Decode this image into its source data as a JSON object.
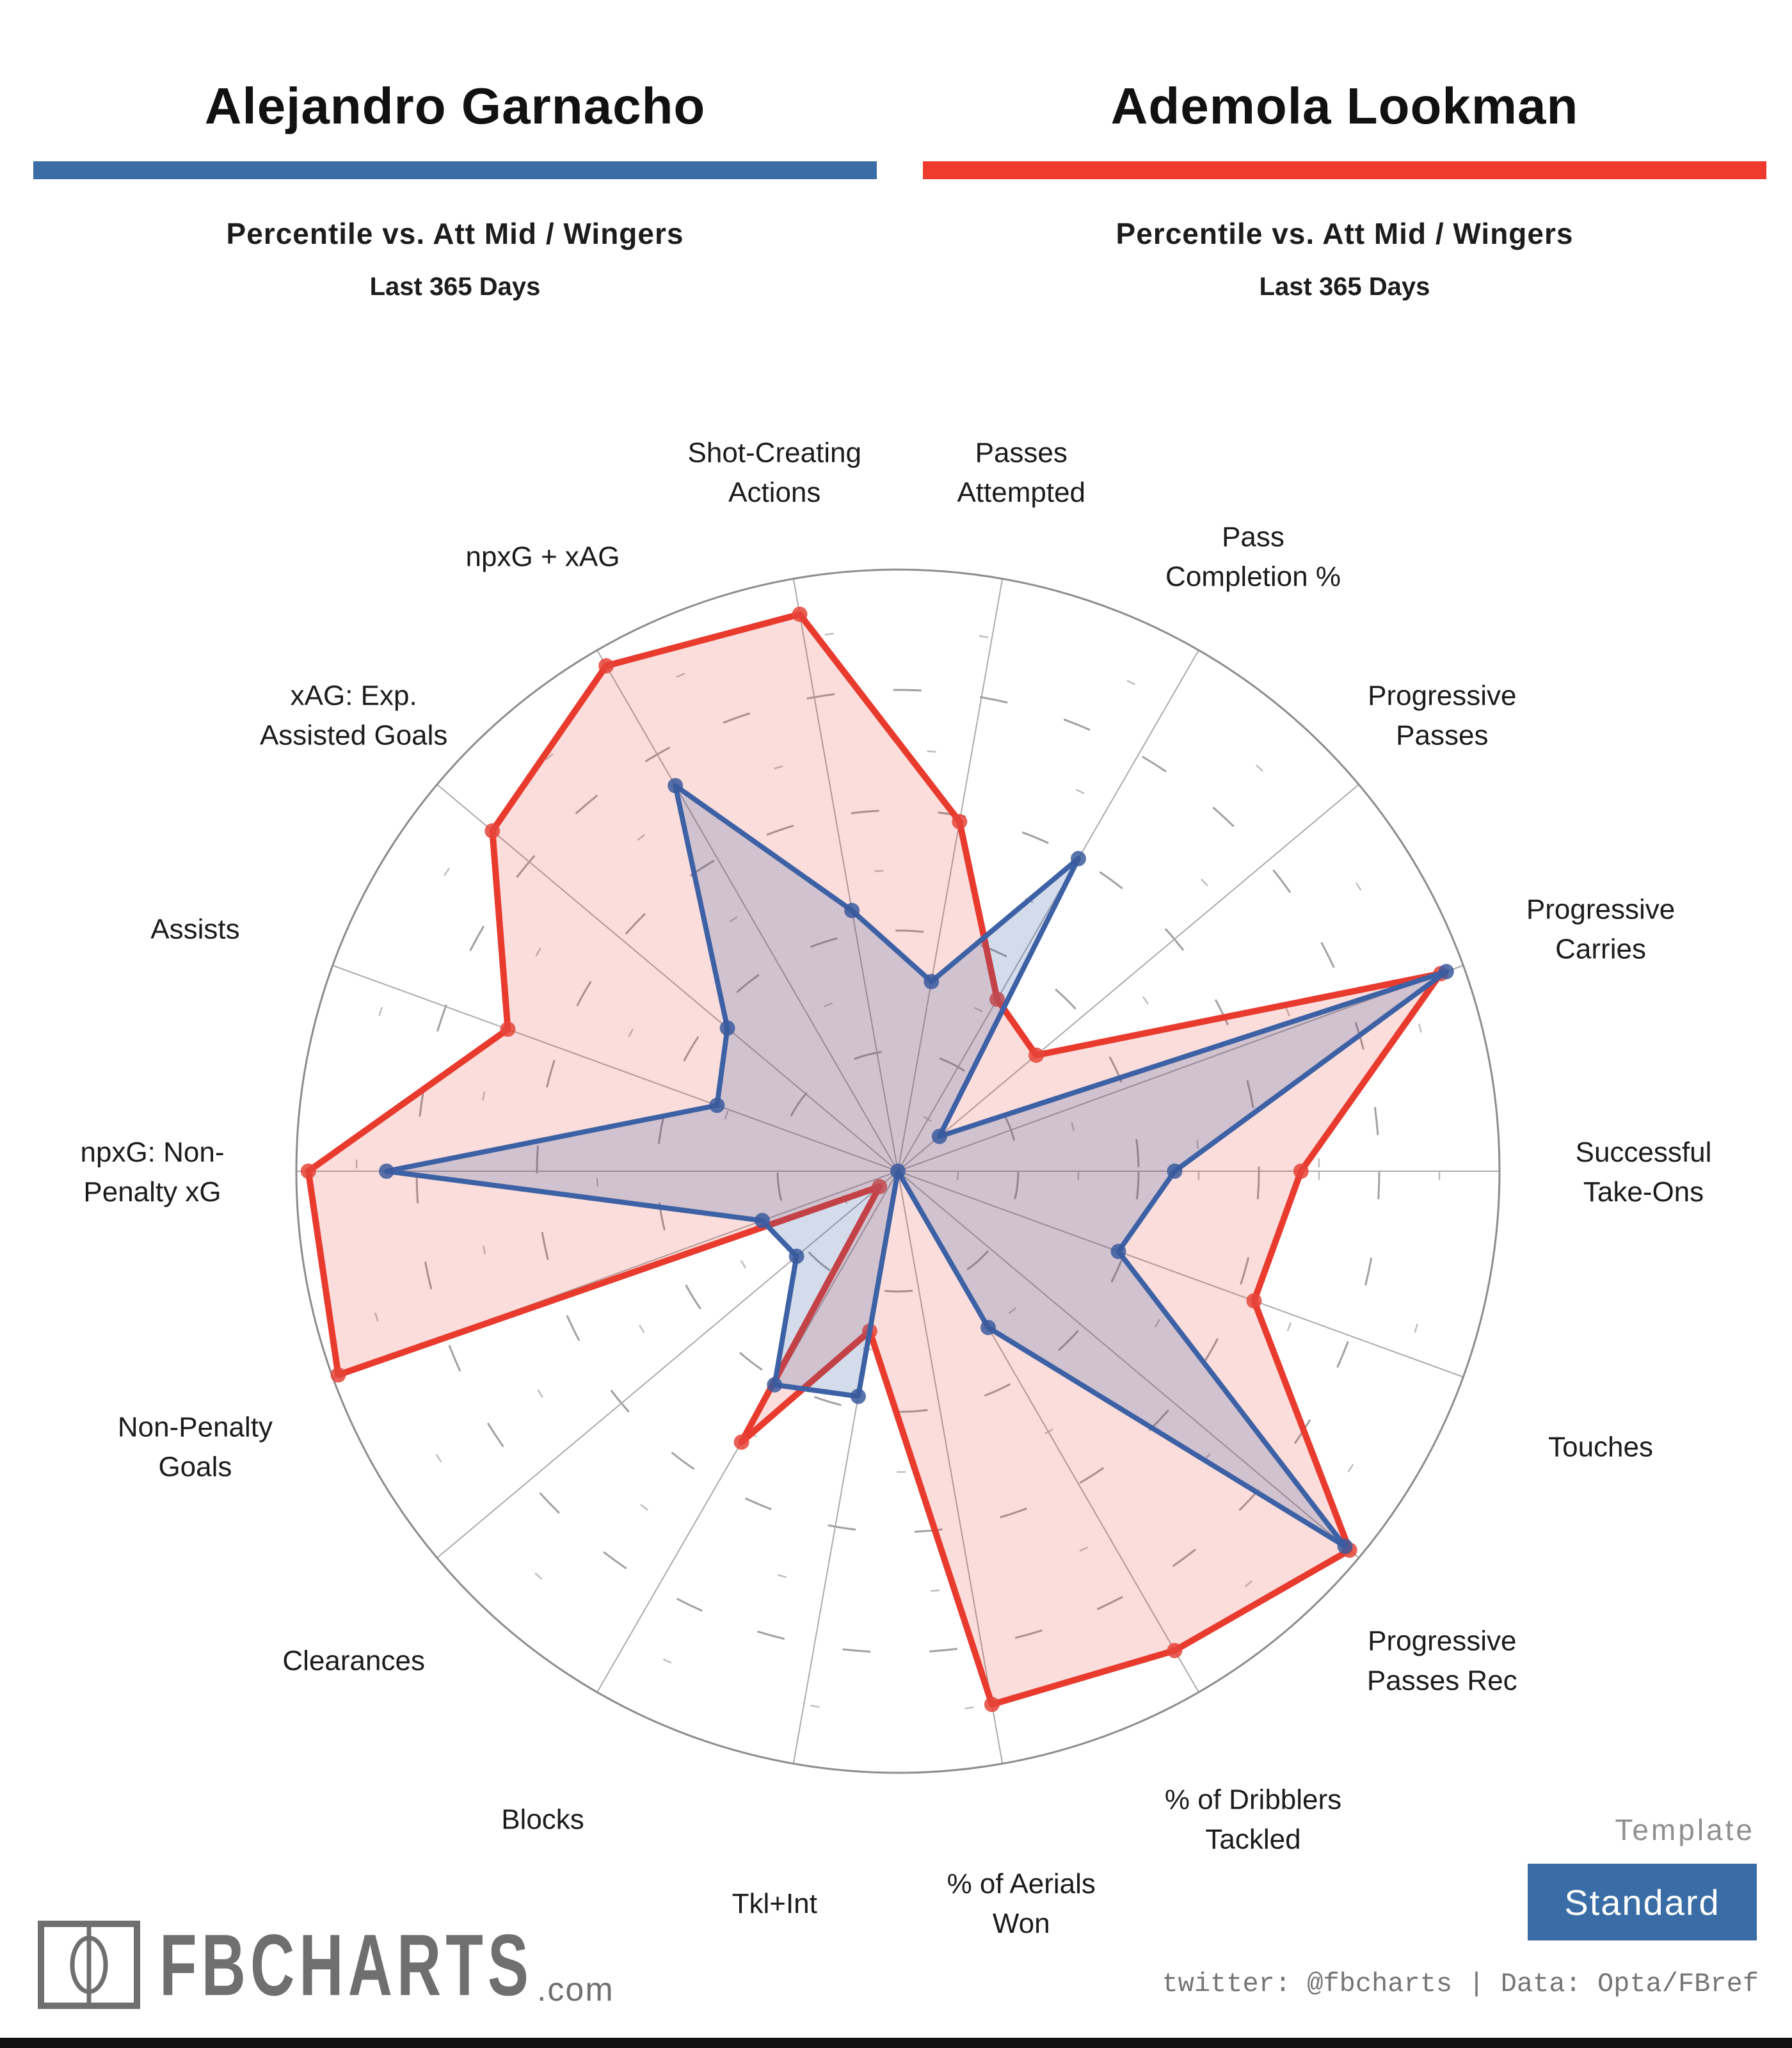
{
  "players": [
    {
      "name": "Alejandro Garnacho",
      "subtitle": "Percentile vs. Att Mid / Wingers",
      "period": "Last 365 Days",
      "accent_color": "#3A6DA6"
    },
    {
      "name": "Ademola Lookman",
      "subtitle": "Percentile vs. Att Mid / Wingers",
      "period": "Last 365 Days",
      "accent_color": "#EF3B2D"
    }
  ],
  "chart_data": {
    "type": "radar",
    "title": "Percentile vs. Att Mid / Wingers — Last 365 Days",
    "max": 100,
    "rings_major": [
      20,
      40,
      60,
      80
    ],
    "rings_minor": [
      10,
      30,
      50,
      70,
      90
    ],
    "start_angle_deg": 10,
    "angle_step_deg": 20,
    "axes": [
      "Passes\nAttempted",
      "Pass\nCompletion %",
      "Progressive\nPasses",
      "Progressive\nCarries",
      "Successful\nTake-Ons",
      "Touches",
      "Progressive\nPasses Rec",
      "% of Dribblers\nTackled",
      "% of Aerials\nWon",
      "Tkl+Int",
      "Blocks",
      "Clearances",
      "Non-Penalty\nGoals",
      "npxG: Non-\nPenalty xG",
      "Assists",
      "xAG: Exp.\nAssisted Goals",
      "npxG + xAG",
      "Shot-Creating\nActions"
    ],
    "series": [
      {
        "name": "Alejandro Garnacho",
        "line_color": "#3D61A5",
        "marker_color": "#3B5B9E",
        "fill_color": "rgba(61,97,165,0.22)",
        "line_width": 8,
        "values": [
          32,
          60,
          9,
          97,
          46,
          39,
          97,
          30,
          0,
          38,
          41,
          22,
          24,
          85,
          32,
          37,
          74,
          44
        ]
      },
      {
        "name": "Ademola Lookman",
        "line_color": "#E93A2E",
        "marker_color": "#E64438",
        "fill_color": "rgba(233,58,46,0.17)",
        "line_width": 10,
        "values": [
          59,
          33,
          30,
          96,
          67,
          63,
          98,
          92,
          90,
          27,
          52,
          4,
          99,
          98,
          69,
          88,
          97,
          94
        ]
      }
    ],
    "legend_position": "none",
    "grid": "dashed-rings"
  },
  "footer": {
    "logo_text": "FBCHARTS",
    "logo_suffix": ".com",
    "template_label": "Template",
    "template_value": "Standard",
    "credits": "twitter: @fbcharts | Data: Opta/FBref"
  }
}
